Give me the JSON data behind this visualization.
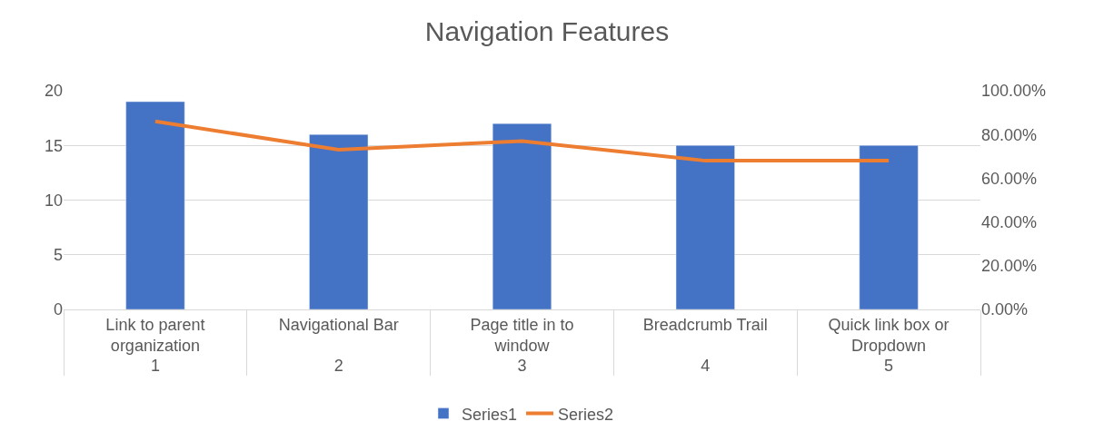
{
  "chart_data": {
    "type": "bar",
    "title": "Navigation Features",
    "categories": [
      "Link to parent organization",
      "Navigational Bar",
      "Page title in to window",
      "Breadcrumb Trail",
      "Quick link box or Dropdown"
    ],
    "annotations": [
      "1",
      "2",
      "3",
      "4",
      "5"
    ],
    "series": [
      {
        "name": "Series1",
        "color": "#4472c4",
        "values": [
          19,
          16,
          17,
          15,
          15
        ]
      },
      {
        "name": "Series2",
        "color": "#ed7d31",
        "type": "line",
        "axis": "y2",
        "marker": "none",
        "values": [
          86,
          73,
          77,
          68,
          68
        ]
      }
    ],
    "ylim": [
      0,
      20
    ],
    "yticks": [
      0,
      5,
      10,
      15,
      20
    ],
    "y2lim": [
      0,
      100
    ],
    "y2ticks": [
      {
        "value": 0,
        "label": "0.00%"
      },
      {
        "value": 20,
        "label": "20.00%"
      },
      {
        "value": 40,
        "label": "40.00%"
      },
      {
        "value": 60,
        "label": "60.00%"
      },
      {
        "value": 80,
        "label": "80.00%"
      },
      {
        "value": 100,
        "label": "100.00%"
      }
    ],
    "grid": "y",
    "legend": "bottom"
  }
}
